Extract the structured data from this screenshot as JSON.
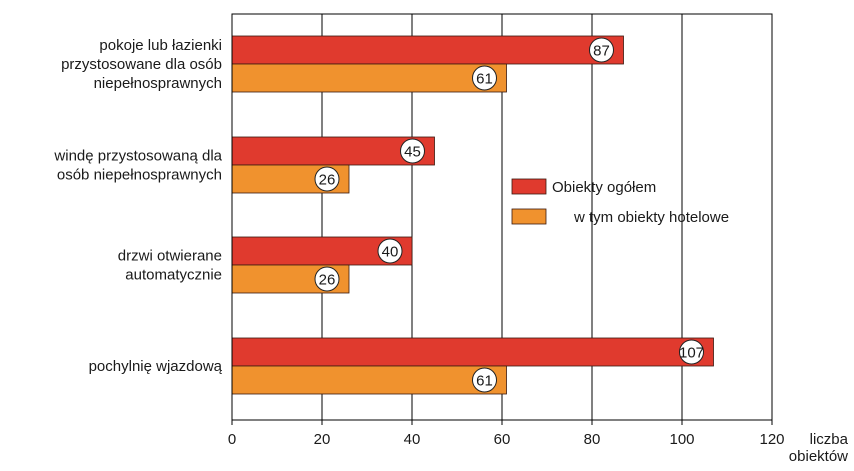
{
  "chart_data": {
    "type": "bar",
    "orientation": "horizontal",
    "categories": [
      [
        "pokoje lub łazienki",
        "przystosowane dla osób",
        "niepełnosprawnych"
      ],
      [
        "windę przystosowaną dla",
        "osób niepełnosprawnych"
      ],
      [
        "drzwi otwierane",
        "automatycznie"
      ],
      [
        "pochylnię wjazdową"
      ]
    ],
    "series": [
      {
        "name": "Obiekty ogółem",
        "color": "#e03a2e",
        "values": [
          87,
          45,
          40,
          107
        ]
      },
      {
        "name": "w tym obiekty hotelowe",
        "color": "#f0922e",
        "values": [
          61,
          26,
          26,
          61
        ]
      }
    ],
    "xlim": [
      0,
      120
    ],
    "xticks": [
      "0",
      "20",
      "40",
      "60",
      "80",
      "100",
      "120"
    ],
    "xlabel": [
      "liczba",
      "obiektów"
    ],
    "grid": "vertical",
    "legend_position": "right"
  }
}
